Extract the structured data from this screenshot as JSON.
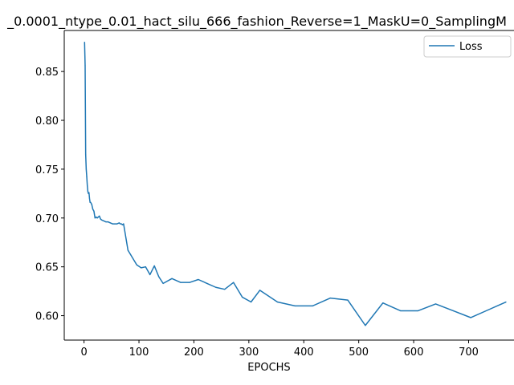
{
  "chart_data": {
    "type": "line",
    "title": "_0.0001_ntype_0.01_hact_silu_666_fashion_Reverse=1_MaskU=0_SamplingM",
    "xlabel": "EPOCHS",
    "ylabel": "",
    "xlim": [
      -36,
      806
    ],
    "ylim": [
      0.575,
      0.892
    ],
    "xticks": [
      0,
      100,
      200,
      300,
      400,
      500,
      600,
      700,
      800
    ],
    "yticks": [
      0.6,
      0.65,
      0.7,
      0.75,
      0.8,
      0.85
    ],
    "ytick_labels": [
      "0.60",
      "0.65",
      "0.70",
      "0.75",
      "0.80",
      "0.85"
    ],
    "grid": false,
    "legend_position": "top-right",
    "series": [
      {
        "name": "Loss",
        "color": "#1f77b4",
        "x": [
          1,
          2,
          3,
          4,
          5,
          6,
          7,
          8,
          9,
          10,
          11,
          12,
          14,
          16,
          18,
          20,
          22,
          24,
          26,
          28,
          30,
          32,
          36,
          40,
          44,
          48,
          52,
          56,
          60,
          64,
          66,
          68,
          70,
          72,
          80,
          96,
          104,
          112,
          120,
          128,
          136,
          144,
          160,
          176,
          192,
          208,
          224,
          240,
          256,
          272,
          288,
          304,
          320,
          352,
          384,
          416,
          448,
          480,
          512,
          544,
          576,
          608,
          640,
          672,
          704,
          736,
          768
        ],
        "y": [
          0.88,
          0.856,
          0.765,
          0.75,
          0.742,
          0.733,
          0.727,
          0.725,
          0.726,
          0.72,
          0.716,
          0.716,
          0.714,
          0.709,
          0.707,
          0.7,
          0.701,
          0.7,
          0.701,
          0.702,
          0.699,
          0.698,
          0.697,
          0.696,
          0.696,
          0.695,
          0.694,
          0.694,
          0.694,
          0.695,
          0.694,
          0.694,
          0.693,
          0.694,
          0.667,
          0.652,
          0.649,
          0.65,
          0.642,
          0.651,
          0.64,
          0.633,
          0.638,
          0.634,
          0.634,
          0.637,
          0.633,
          0.629,
          0.627,
          0.634,
          0.619,
          0.614,
          0.626,
          0.614,
          0.61,
          0.61,
          0.618,
          0.616,
          0.59,
          0.613,
          0.605,
          0.605,
          0.612,
          0.605,
          0.598,
          0.606,
          0.614
        ]
      }
    ]
  }
}
